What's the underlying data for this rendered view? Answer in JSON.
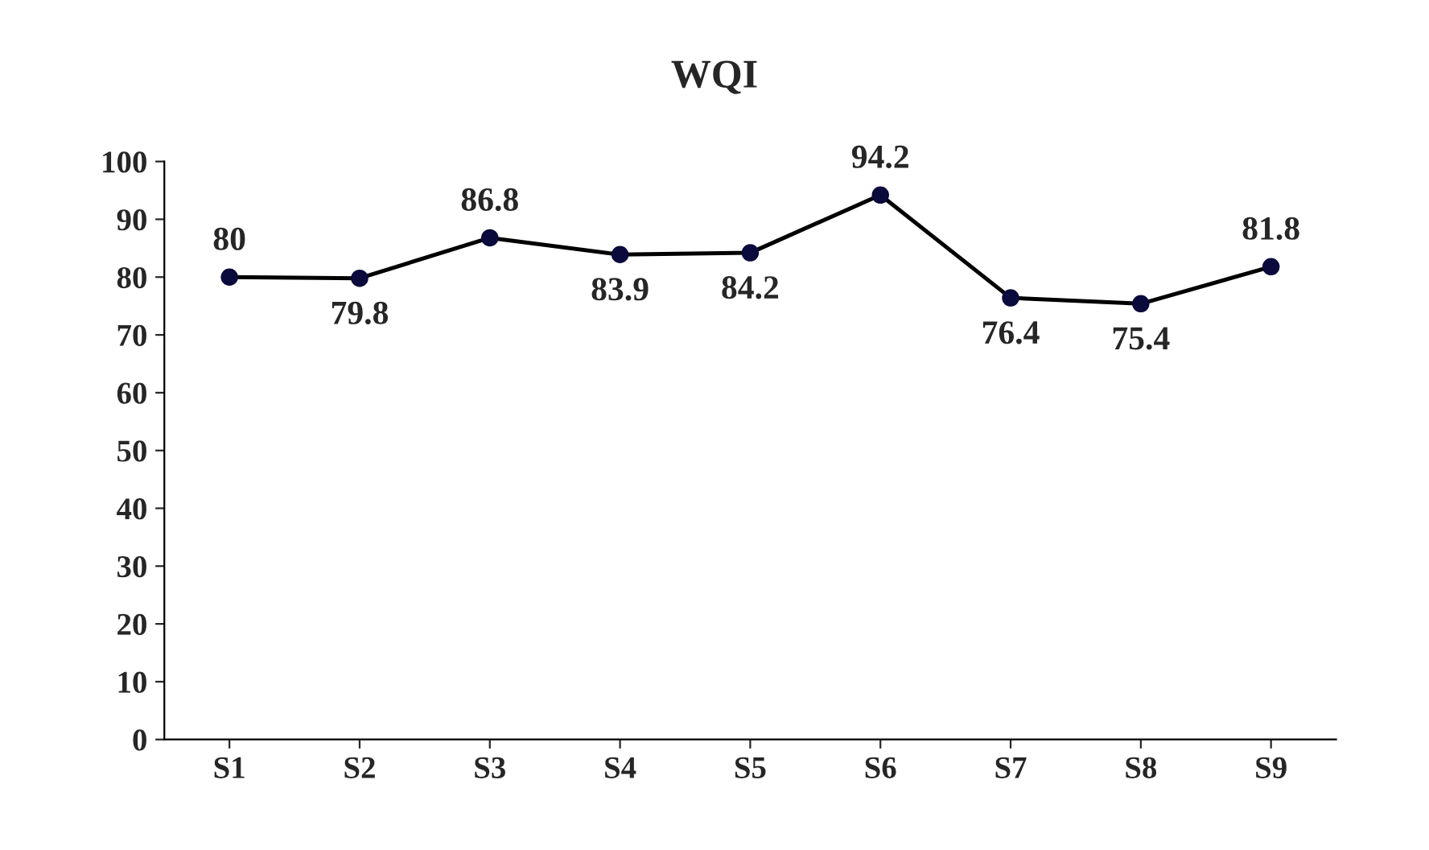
{
  "chart_data": {
    "type": "line",
    "title": "WQI",
    "categories": [
      "S1",
      "S2",
      "S3",
      "S4",
      "S5",
      "S6",
      "S7",
      "S8",
      "S9"
    ],
    "series": [
      {
        "color": "#000000",
        "values": [
          80,
          79.8,
          86.8,
          83.9,
          84.2,
          94.2,
          76.4,
          75.4,
          81.8
        ]
      }
    ],
    "ylim": [
      0,
      100
    ],
    "yticks": [
      0,
      10,
      20,
      30,
      40,
      50,
      60,
      70,
      80,
      90,
      100
    ],
    "marker": "circle",
    "line_style": "solid",
    "data_labels": true,
    "grid": false,
    "legend": false
  }
}
